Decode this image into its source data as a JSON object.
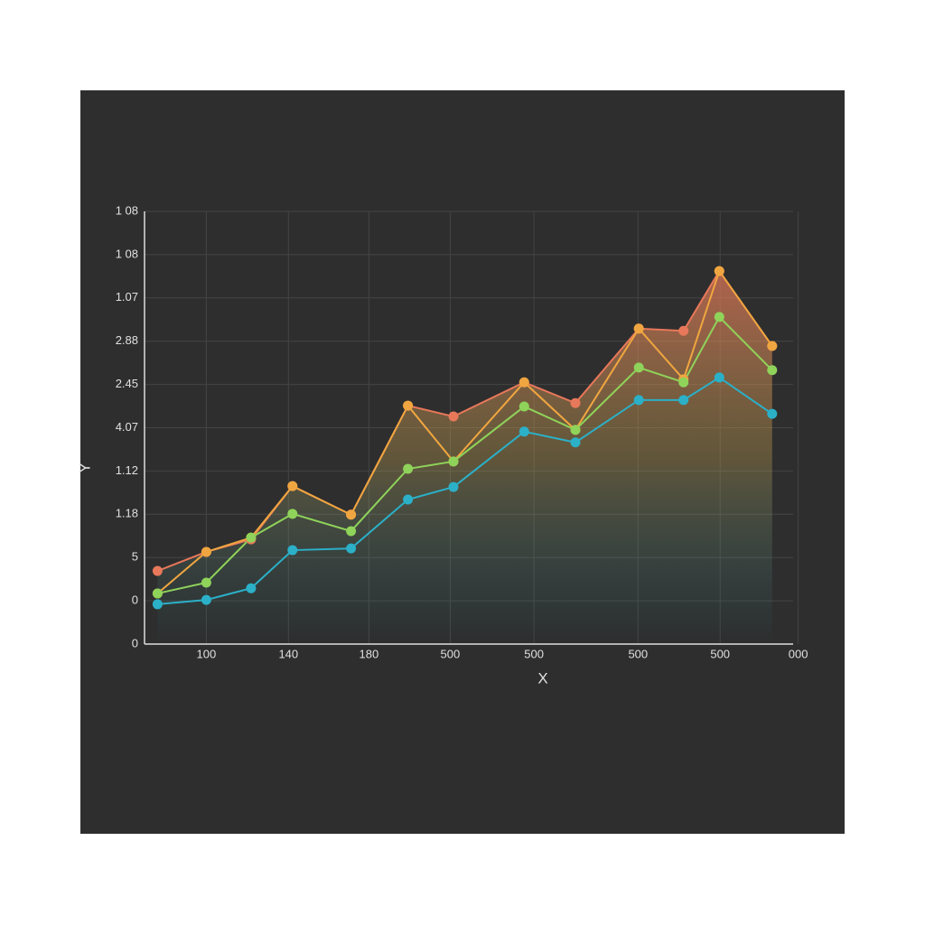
{
  "chart_data": {
    "type": "line",
    "xlabel": "X",
    "ylabel": "Y",
    "x": [
      0.16,
      0.76,
      1.31,
      1.82,
      2.54,
      3.24,
      3.8,
      4.67,
      5.3,
      6.08,
      6.63,
      7.07,
      7.72
    ],
    "series": [
      {
        "color": "#e8785a",
        "area": true,
        "values": [
          1.69,
          2.13,
          2.42,
          3.65,
          2.99,
          5.51,
          5.26,
          6.05,
          5.57,
          7.29,
          7.24,
          8.62,
          6.89
        ]
      },
      {
        "color": "#f0a640",
        "values": [
          1.17,
          2.13,
          2.46,
          3.65,
          2.99,
          5.51,
          4.22,
          6.05,
          4.95,
          7.29,
          6.12,
          8.62,
          6.89
        ]
      },
      {
        "color": "#8fd35a",
        "values": [
          1.17,
          1.42,
          2.46,
          3.01,
          2.61,
          4.05,
          4.22,
          5.49,
          4.95,
          6.39,
          6.05,
          7.56,
          6.33
        ]
      },
      {
        "color": "#2bb0c8",
        "values": [
          0.92,
          1.02,
          1.29,
          2.17,
          2.21,
          3.34,
          3.63,
          4.91,
          4.66,
          5.64,
          5.64,
          6.16,
          5.32
        ]
      }
    ],
    "xlim": [
      0,
      8.1
    ],
    "ylim": [
      0,
      10
    ],
    "xticks": [
      {
        "value": 0.76,
        "label": "100"
      },
      {
        "value": 1.77,
        "label": "140"
      },
      {
        "value": 2.76,
        "label": "180"
      },
      {
        "value": 3.76,
        "label": "500"
      },
      {
        "value": 4.79,
        "label": "500"
      },
      {
        "value": 6.07,
        "label": "500"
      },
      {
        "value": 7.08,
        "label": "500"
      },
      {
        "value": 8.04,
        "label": "000"
      }
    ],
    "yticks": [
      {
        "value": 0,
        "label": "0"
      },
      {
        "value": 1,
        "label": "0"
      },
      {
        "value": 2,
        "label": "5"
      },
      {
        "value": 3,
        "label": "1.18"
      },
      {
        "value": 4,
        "label": "1.12"
      },
      {
        "value": 5,
        "label": "4.07"
      },
      {
        "value": 6,
        "label": "2.45"
      },
      {
        "value": 7,
        "label": "2.88"
      },
      {
        "value": 8,
        "label": "1.07"
      },
      {
        "value": 9,
        "label": "1 08"
      },
      {
        "value": 10,
        "label": "1 08"
      }
    ],
    "grid": true
  }
}
